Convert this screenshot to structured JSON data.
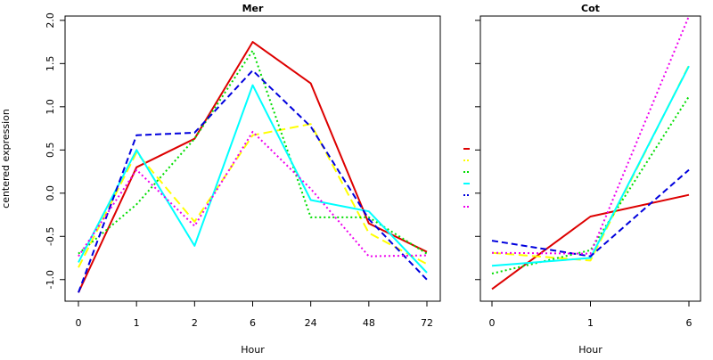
{
  "chart_data": [
    {
      "type": "line",
      "title": "Mer",
      "xlabel": "Hour",
      "ylabel": "centered expression",
      "categories": [
        "0",
        "1",
        "2",
        "6",
        "24",
        "48",
        "72"
      ],
      "ylim": [
        -1.25,
        2.05
      ],
      "yticks": [
        -1.0,
        -0.5,
        0.0,
        0.5,
        1.0,
        1.5,
        2.0
      ],
      "ytick_labels": [
        "-1.0",
        "-0.5",
        "0.0",
        "0.5",
        "1.0",
        "1.5",
        "2.0"
      ],
      "series": [
        {
          "color": "#dd0000",
          "dash": "solid",
          "values": [
            -1.15,
            0.3,
            0.63,
            1.75,
            1.27,
            -0.35,
            -0.68
          ]
        },
        {
          "color": "#ffff00",
          "dash": "longdash",
          "values": [
            -0.86,
            0.47,
            -0.33,
            0.67,
            0.8,
            -0.46,
            -0.82
          ]
        },
        {
          "color": "#00dd00",
          "dash": "dotted",
          "values": [
            -0.7,
            -0.13,
            0.63,
            1.65,
            -0.28,
            -0.28,
            -0.7
          ]
        },
        {
          "color": "#00ffff",
          "dash": "solid",
          "values": [
            -0.8,
            0.5,
            -0.61,
            1.25,
            -0.08,
            -0.21,
            -0.92
          ]
        },
        {
          "color": "#0000dd",
          "dash": "dashed",
          "values": [
            -1.15,
            0.67,
            0.7,
            1.42,
            0.77,
            -0.3,
            -1.0
          ]
        },
        {
          "color": "#ee00ee",
          "dash": "dotted",
          "values": [
            -0.73,
            0.27,
            -0.38,
            0.71,
            0.05,
            -0.73,
            -0.72
          ]
        }
      ]
    },
    {
      "type": "line",
      "title": "Cot",
      "xlabel": "Hour",
      "ylabel": "",
      "categories": [
        "0",
        "1",
        "6"
      ],
      "ylim": [
        -1.25,
        2.05
      ],
      "yticks": [
        -1.0,
        -0.5,
        0.0,
        0.5,
        1.0,
        1.5,
        2.0
      ],
      "series": [
        {
          "color": "#dd0000",
          "dash": "solid",
          "values": [
            -1.11,
            -0.27,
            -0.02
          ]
        },
        {
          "color": "#ffff00",
          "dash": "longdash",
          "values": [
            -0.69,
            -0.78,
            1.48
          ]
        },
        {
          "color": "#00dd00",
          "dash": "dotted",
          "values": [
            -0.93,
            -0.66,
            1.12
          ]
        },
        {
          "color": "#00ffff",
          "dash": "solid",
          "values": [
            -0.84,
            -0.75,
            1.47
          ]
        },
        {
          "color": "#0000dd",
          "dash": "dashed",
          "values": [
            -0.55,
            -0.73,
            0.27
          ]
        },
        {
          "color": "#ee00ee",
          "dash": "dotted",
          "values": [
            -0.69,
            -0.7,
            2.05
          ]
        }
      ]
    }
  ],
  "legend": {
    "placement": "between-panels",
    "items": [
      {
        "color": "#dd0000",
        "dash": "solid"
      },
      {
        "color": "#ffff00",
        "dash": "longdash"
      },
      {
        "color": "#00dd00",
        "dash": "dotted"
      },
      {
        "color": "#00ffff",
        "dash": "solid"
      },
      {
        "color": "#0000dd",
        "dash": "dashed"
      },
      {
        "color": "#ee00ee",
        "dash": "dotted"
      }
    ]
  }
}
